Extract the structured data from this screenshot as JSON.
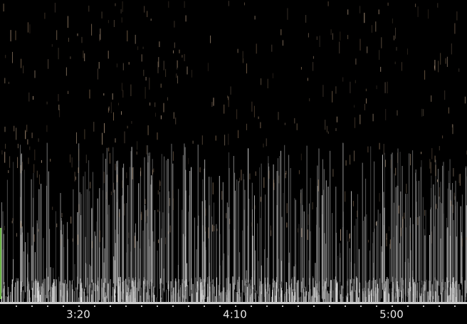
{
  "time_axis": {
    "labels": [
      "3:20",
      "4:10",
      "5:00"
    ]
  }
}
